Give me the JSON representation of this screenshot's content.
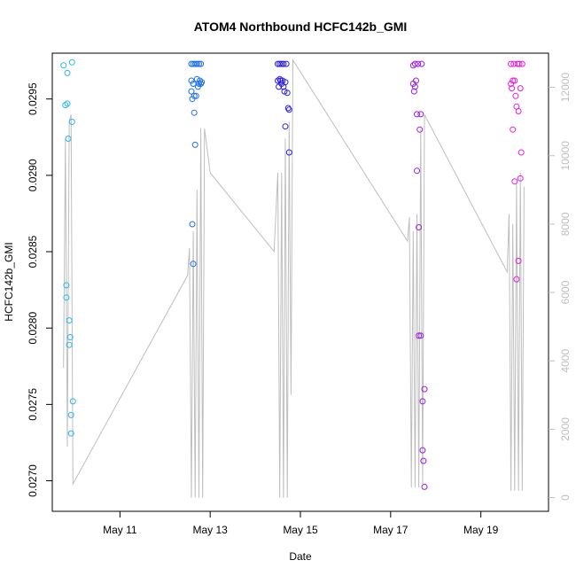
{
  "chart_data": {
    "type": "scatter",
    "title": "ATOM4 Northbound HCFC142b_GMI",
    "xlabel": "Date",
    "ylabel": "HCFC142b_GMI",
    "x_range": [
      "May 9 12:00",
      "May 20 12:00"
    ],
    "x_ticks": [
      "May 11",
      "May 13",
      "May 15",
      "May 17",
      "May 19"
    ],
    "ylim": [
      0.0268,
      0.0298
    ],
    "y_ticks": [
      "0.0270",
      "0.0275",
      "0.0280",
      "0.0285",
      "0.0290",
      "0.0295"
    ],
    "y_tick_values": [
      0.027,
      0.0275,
      0.028,
      0.0285,
      0.029,
      0.0295
    ],
    "y2lim": [
      -400,
      13000
    ],
    "y2_ticks": [
      "0",
      "2000",
      "4000",
      "6000",
      "8000",
      "10000",
      "12000"
    ],
    "y2_tick_values": [
      0,
      2000,
      4000,
      6000,
      8000,
      10000,
      12000
    ],
    "grid": false,
    "legend": "none",
    "colors": {
      "flight1": "#29b6f6",
      "flight2": "#1e6ff0",
      "flight3": "#2a1ee6",
      "flight4": "#9b1ee6",
      "flight5": "#e61ee0",
      "altitude_line": "#bebebe"
    },
    "flights": [
      {
        "color_key": "flight1",
        "points": [
          [
            "May 9 18:00",
            0.02972
          ],
          [
            "May 9 19:00",
            0.02946
          ],
          [
            "May 9 19:30",
            0.02828
          ],
          [
            "May 9 19:30",
            0.0282
          ],
          [
            "May 9 20:00",
            0.02967
          ],
          [
            "May 9 20:00",
            0.02947
          ],
          [
            "May 9 20:30",
            0.02924
          ],
          [
            "May 9 21:00",
            0.02805
          ],
          [
            "May 9 21:00",
            0.02789
          ],
          [
            "May 9 21:30",
            0.02794
          ],
          [
            "May 9 22:00",
            0.02743
          ],
          [
            "May 9 22:00",
            0.02731
          ],
          [
            "May 9 22:30",
            0.02974
          ],
          [
            "May 9 22:30",
            0.02935
          ],
          [
            "May 9 23:00",
            0.02752
          ]
        ],
        "altitude": [
          [
            "May 9 18:00",
            3800
          ],
          [
            "May 9 19:00",
            10500
          ],
          [
            "May 9 20:00",
            1500
          ],
          [
            "May 9 21:00",
            11000
          ],
          [
            "May 9 22:00",
            11200
          ],
          [
            "May 9 23:00",
            400
          ]
        ]
      },
      {
        "color_key": "flight2",
        "points": [
          [
            "May 12 14:00",
            0.02973
          ],
          [
            "May 12 14:00",
            0.02962
          ],
          [
            "May 12 14:00",
            0.02955
          ],
          [
            "May 12 14:30",
            0.0295
          ],
          [
            "May 12 14:30",
            0.02868
          ],
          [
            "May 12 15:00",
            0.02973
          ],
          [
            "May 12 15:00",
            0.0296
          ],
          [
            "May 12 15:00",
            0.02842
          ],
          [
            "May 12 15:30",
            0.02941
          ],
          [
            "May 12 15:30",
            0.02952
          ],
          [
            "May 12 16:00",
            0.0292
          ],
          [
            "May 12 16:00",
            0.02973
          ],
          [
            "May 12 16:30",
            0.02952
          ],
          [
            "May 12 17:00",
            0.02973
          ],
          [
            "May 12 17:00",
            0.02963
          ],
          [
            "May 12 17:30",
            0.02958
          ],
          [
            "May 12 18:00",
            0.02973
          ],
          [
            "May 12 18:00",
            0.0296
          ],
          [
            "May 12 18:30",
            0.02962
          ],
          [
            "May 12 19:00",
            0.02973
          ],
          [
            "May 12 19:00",
            0.0296
          ],
          [
            "May 12 19:30",
            0.02961
          ]
        ],
        "altitude": [
          [
            "May 12 12:00",
            6500
          ],
          [
            "May 12 13:00",
            7300
          ],
          [
            "May 12 14:00",
            0
          ],
          [
            "May 12 15:00",
            7800
          ],
          [
            "May 12 16:00",
            0
          ],
          [
            "May 12 17:00",
            9000
          ],
          [
            "May 12 18:00",
            0
          ],
          [
            "May 12 19:00",
            10800
          ],
          [
            "May 12 20:00",
            0
          ],
          [
            "May 12 21:00",
            10800
          ],
          [
            "May 13 00:00",
            9500
          ]
        ]
      },
      {
        "color_key": "flight3",
        "points": [
          [
            "May 14 12:00",
            0.02973
          ],
          [
            "May 14 12:00",
            0.02962
          ],
          [
            "May 14 12:30",
            0.02958
          ],
          [
            "May 14 13:00",
            0.02963
          ],
          [
            "May 14 13:00",
            0.02973
          ],
          [
            "May 14 13:30",
            0.02962
          ],
          [
            "May 14 14:00",
            0.0296
          ],
          [
            "May 14 14:00",
            0.02973
          ],
          [
            "May 14 14:30",
            0.02962
          ],
          [
            "May 14 15:00",
            0.02958
          ],
          [
            "May 14 15:00",
            0.02973
          ],
          [
            "May 14 15:30",
            0.02955
          ],
          [
            "May 14 16:00",
            0.02961
          ],
          [
            "May 14 16:00",
            0.02932
          ],
          [
            "May 14 16:30",
            0.02973
          ],
          [
            "May 14 17:00",
            0.02954
          ],
          [
            "May 14 17:30",
            0.02944
          ],
          [
            "May 14 18:00",
            0.02915
          ],
          [
            "May 14 18:00",
            0.02943
          ]
        ],
        "altitude": [
          [
            "May 14 10:00",
            7200
          ],
          [
            "May 14 12:00",
            9500
          ],
          [
            "May 14 13:00",
            0
          ],
          [
            "May 14 14:00",
            9500
          ],
          [
            "May 14 15:00",
            0
          ],
          [
            "May 14 16:00",
            10500
          ],
          [
            "May 14 17:00",
            0
          ],
          [
            "May 14 18:00",
            11000
          ],
          [
            "May 14 19:00",
            3000
          ],
          [
            "May 14 20:00",
            12800
          ]
        ]
      },
      {
        "color_key": "flight4",
        "points": [
          [
            "May 17 12:00",
            0.02972
          ],
          [
            "May 17 12:00",
            0.0296
          ],
          [
            "May 17 12:30",
            0.02955
          ],
          [
            "May 17 13:00",
            0.02958
          ],
          [
            "May 17 13:00",
            0.02973
          ],
          [
            "May 17 13:30",
            0.02962
          ],
          [
            "May 17 14:00",
            0.0294
          ],
          [
            "May 17 14:00",
            0.02903
          ],
          [
            "May 17 14:30",
            0.02973
          ],
          [
            "May 17 15:00",
            0.02866
          ],
          [
            "May 17 15:00",
            0.02795
          ],
          [
            "May 17 15:30",
            0.0293
          ],
          [
            "May 17 16:00",
            0.0294
          ],
          [
            "May 17 16:00",
            0.02795
          ],
          [
            "May 17 16:30",
            0.02973
          ],
          [
            "May 17 17:00",
            0.02752
          ],
          [
            "May 17 17:00",
            0.0272
          ],
          [
            "May 17 17:30",
            0.02713
          ],
          [
            "May 17 18:00",
            0.0276
          ],
          [
            "May 17 18:00",
            0.02696
          ]
        ],
        "altitude": [
          [
            "May 17 09:00",
            7500
          ],
          [
            "May 17 10:00",
            8200
          ],
          [
            "May 17 11:00",
            300
          ],
          [
            "May 17 12:00",
            7800
          ],
          [
            "May 17 13:00",
            300
          ],
          [
            "May 17 14:00",
            8300
          ],
          [
            "May 17 15:00",
            300
          ],
          [
            "May 17 16:00",
            10800
          ],
          [
            "May 17 17:00",
            400
          ],
          [
            "May 17 18:00",
            11200
          ]
        ]
      },
      {
        "color_key": "flight5",
        "points": [
          [
            "May 19 16:00",
            0.02973
          ],
          [
            "May 19 16:00",
            0.0296
          ],
          [
            "May 19 16:30",
            0.02957
          ],
          [
            "May 19 17:00",
            0.02962
          ],
          [
            "May 19 17:00",
            0.0293
          ],
          [
            "May 19 17:30",
            0.02973
          ],
          [
            "May 19 18:00",
            0.02962
          ],
          [
            "May 19 18:00",
            0.02896
          ],
          [
            "May 19 18:30",
            0.02952
          ],
          [
            "May 19 19:00",
            0.02832
          ],
          [
            "May 19 19:00",
            0.02945
          ],
          [
            "May 19 19:30",
            0.02973
          ],
          [
            "May 19 20:00",
            0.02942
          ],
          [
            "May 19 20:00",
            0.02844
          ],
          [
            "May 19 20:30",
            0.02973
          ],
          [
            "May 19 21:00",
            0.02898
          ],
          [
            "May 19 21:00",
            0.02957
          ],
          [
            "May 19 21:30",
            0.02915
          ],
          [
            "May 19 22:00",
            0.02973
          ]
        ],
        "altitude": [
          [
            "May 19 14:00",
            6600
          ],
          [
            "May 19 15:00",
            8300
          ],
          [
            "May 19 16:00",
            200
          ],
          [
            "May 19 17:00",
            8000
          ],
          [
            "May 19 18:00",
            200
          ],
          [
            "May 19 19:00",
            9200
          ],
          [
            "May 19 20:00",
            200
          ],
          [
            "May 19 21:00",
            9500
          ],
          [
            "May 19 22:00",
            200
          ],
          [
            "May 19 23:00",
            9100
          ]
        ]
      }
    ]
  }
}
